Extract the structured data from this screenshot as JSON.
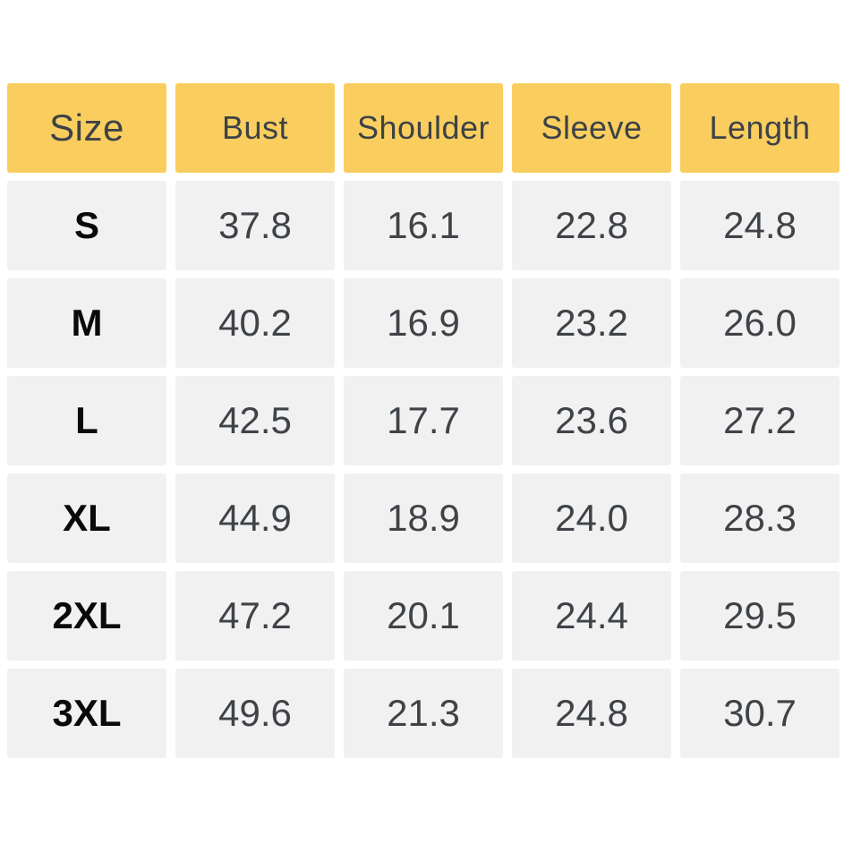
{
  "colors": {
    "page-bg": "#FFFFFF",
    "header-bg": "#F9CE5E",
    "header-text": "#3D4247",
    "cell-bg": "#F1F1F1",
    "size-text": "#0A0A0A",
    "value-text": "#3F4347"
  },
  "chart_data": {
    "type": "table",
    "title": "",
    "headers": [
      "Size",
      "Bust",
      "Shoulder",
      "Sleeve",
      "Length"
    ],
    "rows": [
      {
        "size": "S",
        "bust": "37.8",
        "shoulder": "16.1",
        "sleeve": "22.8",
        "length": "24.8"
      },
      {
        "size": "M",
        "bust": "40.2",
        "shoulder": "16.9",
        "sleeve": "23.2",
        "length": "26.0"
      },
      {
        "size": "L",
        "bust": "42.5",
        "shoulder": "17.7",
        "sleeve": "23.6",
        "length": "27.2"
      },
      {
        "size": "XL",
        "bust": "44.9",
        "shoulder": "18.9",
        "sleeve": "24.0",
        "length": "28.3"
      },
      {
        "size": "2XL",
        "bust": "47.2",
        "shoulder": "20.1",
        "sleeve": "24.4",
        "length": "29.5"
      },
      {
        "size": "3XL",
        "bust": "49.6",
        "shoulder": "21.3",
        "sleeve": "24.8",
        "length": "30.7"
      }
    ]
  }
}
